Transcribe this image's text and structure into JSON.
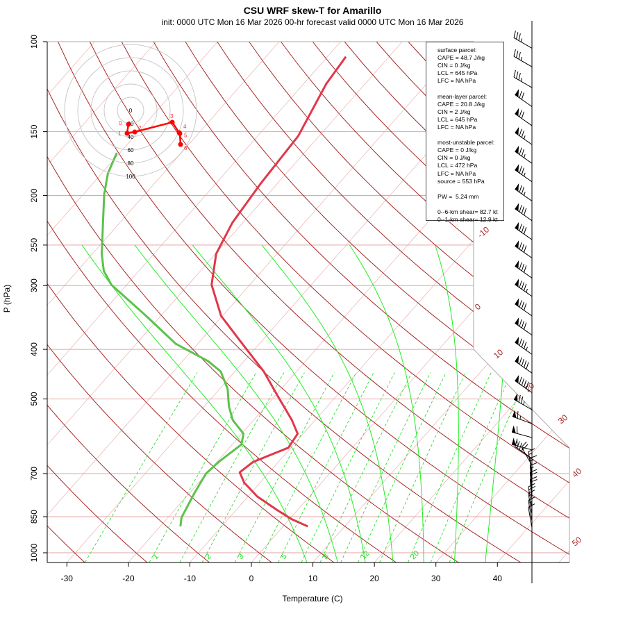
{
  "title": "CSU WRF skew-T for Amarillo",
  "subtitle": "init: 0000 UTC Mon 16 Mar 2026     00-hr forecast valid 0000 UTC Mon 16 Mar 2026",
  "chart_data": {
    "type": "line",
    "title": "CSU WRF skew-T for Amarillo",
    "xlabel": "Temperature (C)",
    "ylabel": "P (hPa)",
    "x_ticks": [
      "-30",
      "-20",
      "-10",
      "0",
      "10",
      "20",
      "30",
      "40"
    ],
    "y_ticks": [
      "100",
      "150",
      "200",
      "250",
      "300",
      "400",
      "500",
      "700",
      "850",
      "1000"
    ],
    "ylim": [
      1050,
      100
    ],
    "isotherm_labels": [
      "-10",
      "0",
      "10",
      "20",
      "30",
      "40",
      "50"
    ],
    "mixing_ratio_labels": [
      "1",
      "2",
      "3",
      "5",
      "8",
      "12",
      "20"
    ],
    "series": [
      {
        "name": "temperature",
        "color": "#e0384a",
        "pressure": [
          888,
          860,
          826,
          776,
          729,
          696,
          664,
          623,
          585,
          550,
          493,
          442,
          384,
          344,
          299,
          260,
          226,
          190,
          153,
          121,
          107
        ],
        "values": [
          4.0,
          0.4,
          -3.2,
          -8.5,
          -12.6,
          -14.8,
          -14.1,
          -10.4,
          -10.9,
          -13.8,
          -19.6,
          -25.3,
          -33.7,
          -40.2,
          -46.2,
          -49.9,
          -51.7,
          -52.7,
          -53.4,
          -56.3,
          -57.0
        ]
      },
      {
        "name": "dewpoint",
        "color": "#5cc24c",
        "pressure": [
          888,
          853,
          764,
          700,
          664,
          614,
          585,
          550,
          517,
          478,
          442,
          422,
          390,
          344,
          299,
          281,
          260,
          199,
          181,
          165
        ],
        "values": [
          -16.7,
          -17.8,
          -19.2,
          -20.1,
          -19.7,
          -18.5,
          -19.7,
          -23.4,
          -26.0,
          -28.7,
          -32.3,
          -35.8,
          -43.6,
          -52.4,
          -62.5,
          -65.7,
          -68.5,
          -76.6,
          -79.0,
          -80.5
        ]
      }
    ],
    "wind_barbs": [
      {
        "p": 103,
        "dir": 300,
        "spd": 35
      },
      {
        "p": 112,
        "dir": 300,
        "spd": 35
      },
      {
        "p": 123,
        "dir": 300,
        "spd": 35
      },
      {
        "p": 134,
        "dir": 305,
        "spd": 70
      },
      {
        "p": 146,
        "dir": 305,
        "spd": 70
      },
      {
        "p": 159,
        "dir": 305,
        "spd": 75
      },
      {
        "p": 173,
        "dir": 305,
        "spd": 75
      },
      {
        "p": 188,
        "dir": 305,
        "spd": 75
      },
      {
        "p": 205,
        "dir": 305,
        "spd": 75
      },
      {
        "p": 224,
        "dir": 305,
        "spd": 80
      },
      {
        "p": 244,
        "dir": 305,
        "spd": 80
      },
      {
        "p": 265,
        "dir": 305,
        "spd": 80
      },
      {
        "p": 290,
        "dir": 305,
        "spd": 80
      },
      {
        "p": 315,
        "dir": 305,
        "spd": 85
      },
      {
        "p": 344,
        "dir": 305,
        "spd": 80
      },
      {
        "p": 375,
        "dir": 305,
        "spd": 80
      },
      {
        "p": 409,
        "dir": 305,
        "spd": 85
      },
      {
        "p": 445,
        "dir": 305,
        "spd": 90
      },
      {
        "p": 486,
        "dir": 305,
        "spd": 90
      },
      {
        "p": 525,
        "dir": 300,
        "spd": 75
      },
      {
        "p": 559,
        "dir": 290,
        "spd": 65
      },
      {
        "p": 595,
        "dir": 285,
        "spd": 60
      },
      {
        "p": 629,
        "dir": 285,
        "spd": 60
      },
      {
        "p": 654,
        "dir": 305,
        "spd": 35
      },
      {
        "p": 674,
        "dir": 330,
        "spd": 20
      },
      {
        "p": 696,
        "dir": 350,
        "spd": 15
      },
      {
        "p": 717,
        "dir": 355,
        "spd": 15
      },
      {
        "p": 741,
        "dir": 355,
        "spd": 15
      },
      {
        "p": 764,
        "dir": 355,
        "spd": 20
      },
      {
        "p": 789,
        "dir": 355,
        "spd": 20
      },
      {
        "p": 815,
        "dir": 350,
        "spd": 20
      },
      {
        "p": 839,
        "dir": 350,
        "spd": 15
      },
      {
        "p": 866,
        "dir": 350,
        "spd": 15
      },
      {
        "p": 893,
        "dir": 350,
        "spd": 10
      }
    ],
    "hodograph": {
      "ring_labels": [
        "0",
        "20",
        "40",
        "60",
        "80",
        "100"
      ],
      "unit": "kt",
      "points": [
        {
          "label": "0",
          "u": -3.2,
          "v": -21.1
        },
        {
          "label": "1",
          "u": -5.3,
          "v": -34.7
        },
        {
          "label": "2",
          "u": 6.3,
          "v": -32.6
        },
        {
          "label": "3",
          "u": 63.2,
          "v": -17.9
        },
        {
          "label": "4",
          "u": 73.7,
          "v": -33.7
        },
        {
          "label": "5",
          "u": 74.7,
          "v": -35.0
        },
        {
          "label": "6",
          "u": 75.8,
          "v": -51.6
        }
      ]
    }
  },
  "info_box": {
    "lines": [
      "surface parcel:",
      "CAPE = 48.7 J/kg",
      "CIN = 0 J/kg",
      "LCL = 645 hPa",
      "LFC = NA hPa",
      "",
      "mean-layer parcel:",
      "CAPE = 20.8 J/kg",
      "CIN = 2 J/kg",
      "LCL = 645 hPa",
      "LFC = NA hPa",
      "",
      "most-unstable parcel:",
      "CAPE = 0 J/kg",
      "CIN = 0 J/kg",
      "LCL = 472 hPa",
      "LFC = NA hPa",
      "source = 553 hPa",
      "",
      "PW =  5.24 mm",
      "",
      "0--6-km shear= 82.7 kt",
      "0--1-km shear= 12.9 kt"
    ]
  }
}
